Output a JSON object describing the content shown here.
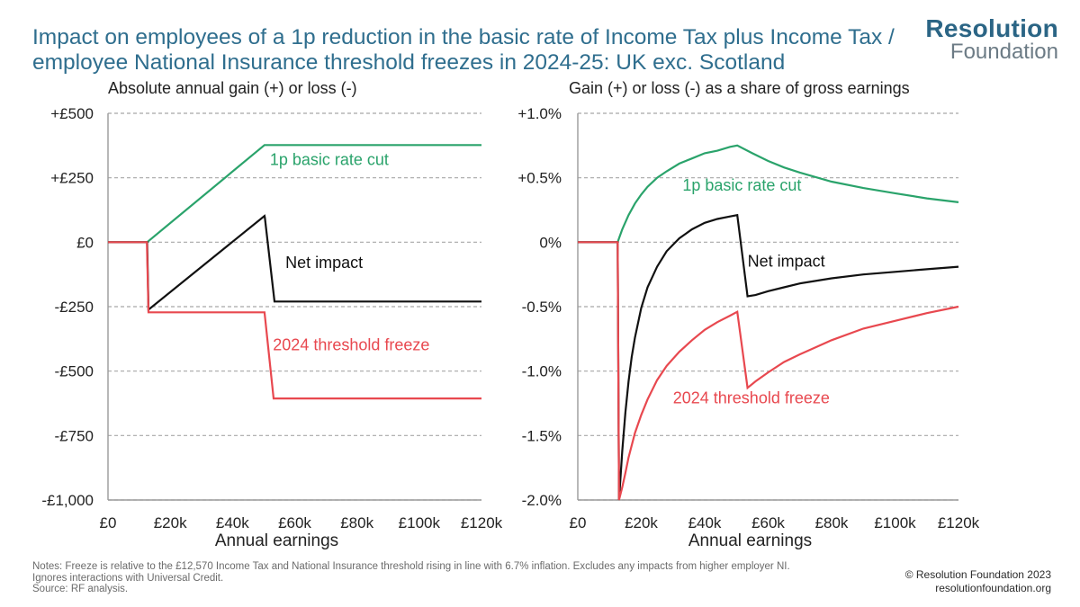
{
  "title_lines": [
    "Impact on employees of a 1p reduction in the basic rate of Income Tax plus Income Tax /",
    "employee National Insurance threshold freezes in 2024-25: UK exc. Scotland"
  ],
  "logo": {
    "line1": "Resolution",
    "line2": "Foundation"
  },
  "colors": {
    "title": "#2f6e8e",
    "logo_dark": "#2b6585",
    "logo_light": "#6c7b85",
    "green": "#2aa36b",
    "black": "#111111",
    "red": "#e8484f",
    "grid": "#a8a8a8",
    "axis": "#9a9a9a"
  },
  "notes": [
    "Notes: Freeze is relative to the £12,570 Income Tax and National Insurance threshold rising in line with 6.7% inflation. Excludes any impacts from higher employer NI.",
    "Ignores interactions with Universal Credit.",
    "Source: RF analysis."
  ],
  "copyright": [
    "© Resolution Foundation 2023",
    "resolutionfoundation.org"
  ],
  "chart_data": [
    {
      "type": "line",
      "title": "Absolute annual gain (+) or loss (-)",
      "xlabel": "Annual earnings",
      "ylabel": "",
      "xlim": [
        0,
        120000
      ],
      "ylim": [
        -1000,
        500
      ],
      "x_ticks": [
        0,
        20000,
        40000,
        60000,
        80000,
        100000,
        120000
      ],
      "x_tick_labels": [
        "£0",
        "£20k",
        "£40k",
        "£60k",
        "£80k",
        "£100k",
        "£120k"
      ],
      "y_ticks": [
        500,
        250,
        0,
        -250,
        -500,
        -750,
        -1000
      ],
      "y_tick_labels": [
        "+£500",
        "+£250",
        "£0",
        "-£250",
        "-£500",
        "-£750",
        "-£1,000"
      ],
      "grid": "horizontal-dashed",
      "series": [
        {
          "name": "1p basic rate cut",
          "color_key": "green",
          "points": [
            [
              0,
              0
            ],
            [
              12570,
              0
            ],
            [
              50270,
              377
            ],
            [
              120000,
              377
            ]
          ]
        },
        {
          "name": "Net impact",
          "color_key": "black",
          "points": [
            [
              0,
              0
            ],
            [
              12500,
              0
            ],
            [
              12570,
              0
            ],
            [
              13000,
              -262
            ],
            [
              50270,
              102
            ],
            [
              50400,
              95
            ],
            [
              53500,
              -230
            ],
            [
              120000,
              -230
            ]
          ]
        },
        {
          "name": "2024 threshold freeze",
          "color_key": "red",
          "points": [
            [
              0,
              0
            ],
            [
              12500,
              0
            ],
            [
              13000,
              -272
            ],
            [
              50270,
              -272
            ],
            [
              53200,
              -606
            ],
            [
              120000,
              -606
            ]
          ]
        }
      ],
      "annotations": [
        {
          "text": "1p basic rate cut",
          "color_key": "green",
          "x": 52000,
          "y": 300
        },
        {
          "text": "Net impact",
          "color_key": "black",
          "x": 57000,
          "y": -100
        },
        {
          "text": "2024 threshold freeze",
          "color_key": "red",
          "x": 53000,
          "y": -420
        }
      ]
    },
    {
      "type": "line",
      "title": "Gain (+) or loss (-) as a share of gross earnings",
      "xlabel": "Annual earnings",
      "ylabel": "",
      "xlim": [
        0,
        120000
      ],
      "ylim": [
        -2.0,
        1.0
      ],
      "x_ticks": [
        0,
        20000,
        40000,
        60000,
        80000,
        100000,
        120000
      ],
      "x_tick_labels": [
        "£0",
        "£20k",
        "£40k",
        "£60k",
        "£80k",
        "£100k",
        "£120k"
      ],
      "y_ticks": [
        1.0,
        0.5,
        0,
        -0.5,
        -1.0,
        -1.5,
        -2.0
      ],
      "y_tick_labels": [
        "+1.0%",
        "+0.5%",
        "0%",
        "-0.5%",
        "-1.0%",
        "-1.5%",
        "-2.0%"
      ],
      "grid": "horizontal-dashed",
      "series": [
        {
          "name": "1p basic rate cut",
          "color_key": "green",
          "points": [
            [
              0,
              0
            ],
            [
              12570,
              0
            ],
            [
              13000,
              0.03
            ],
            [
              14000,
              0.1
            ],
            [
              16000,
              0.21
            ],
            [
              18000,
              0.3
            ],
            [
              20000,
              0.37
            ],
            [
              22000,
              0.43
            ],
            [
              25000,
              0.5
            ],
            [
              28000,
              0.55
            ],
            [
              32000,
              0.61
            ],
            [
              36000,
              0.65
            ],
            [
              40000,
              0.69
            ],
            [
              44000,
              0.71
            ],
            [
              48000,
              0.74
            ],
            [
              50270,
              0.75
            ],
            [
              55000,
              0.69
            ],
            [
              60000,
              0.63
            ],
            [
              65000,
              0.58
            ],
            [
              70000,
              0.54
            ],
            [
              80000,
              0.47
            ],
            [
              90000,
              0.42
            ],
            [
              100000,
              0.38
            ],
            [
              110000,
              0.34
            ],
            [
              120000,
              0.31
            ]
          ]
        },
        {
          "name": "Net impact",
          "color_key": "black",
          "points": [
            [
              0,
              0
            ],
            [
              12570,
              0
            ],
            [
              13000,
              -2.0
            ],
            [
              14000,
              -1.62
            ],
            [
              15000,
              -1.32
            ],
            [
              16000,
              -1.08
            ],
            [
              17000,
              -0.89
            ],
            [
              18000,
              -0.74
            ],
            [
              20000,
              -0.51
            ],
            [
              22000,
              -0.35
            ],
            [
              25000,
              -0.19
            ],
            [
              28000,
              -0.07
            ],
            [
              32000,
              0.03
            ],
            [
              36000,
              0.1
            ],
            [
              40000,
              0.15
            ],
            [
              44000,
              0.18
            ],
            [
              48000,
              0.2
            ],
            [
              50270,
              0.21
            ],
            [
              53500,
              -0.42
            ],
            [
              56000,
              -0.41
            ],
            [
              60000,
              -0.38
            ],
            [
              65000,
              -0.35
            ],
            [
              70000,
              -0.32
            ],
            [
              80000,
              -0.28
            ],
            [
              90000,
              -0.25
            ],
            [
              100000,
              -0.23
            ],
            [
              110000,
              -0.21
            ],
            [
              120000,
              -0.19
            ]
          ]
        },
        {
          "name": "2024 threshold freeze",
          "color_key": "red",
          "points": [
            [
              0,
              0
            ],
            [
              12570,
              0
            ],
            [
              13000,
              -2.0
            ],
            [
              14000,
              -1.9
            ],
            [
              15000,
              -1.79
            ],
            [
              16000,
              -1.67
            ],
            [
              18000,
              -1.48
            ],
            [
              20000,
              -1.34
            ],
            [
              22000,
              -1.22
            ],
            [
              25000,
              -1.07
            ],
            [
              28000,
              -0.96
            ],
            [
              32000,
              -0.85
            ],
            [
              36000,
              -0.76
            ],
            [
              40000,
              -0.68
            ],
            [
              44000,
              -0.62
            ],
            [
              48000,
              -0.57
            ],
            [
              50270,
              -0.54
            ],
            [
              53500,
              -1.13
            ],
            [
              56000,
              -1.08
            ],
            [
              60000,
              -1.01
            ],
            [
              65000,
              -0.93
            ],
            [
              70000,
              -0.87
            ],
            [
              80000,
              -0.76
            ],
            [
              90000,
              -0.67
            ],
            [
              100000,
              -0.61
            ],
            [
              110000,
              -0.55
            ],
            [
              120000,
              -0.5
            ]
          ]
        }
      ],
      "annotations": [
        {
          "text": "1p basic rate cut",
          "color_key": "green",
          "x": 33000,
          "y": 0.4
        },
        {
          "text": "Net impact",
          "color_key": "black",
          "x": 53500,
          "y": -0.19
        },
        {
          "text": "2024 threshold freeze",
          "color_key": "red",
          "x": 30000,
          "y": -1.25
        }
      ]
    }
  ]
}
